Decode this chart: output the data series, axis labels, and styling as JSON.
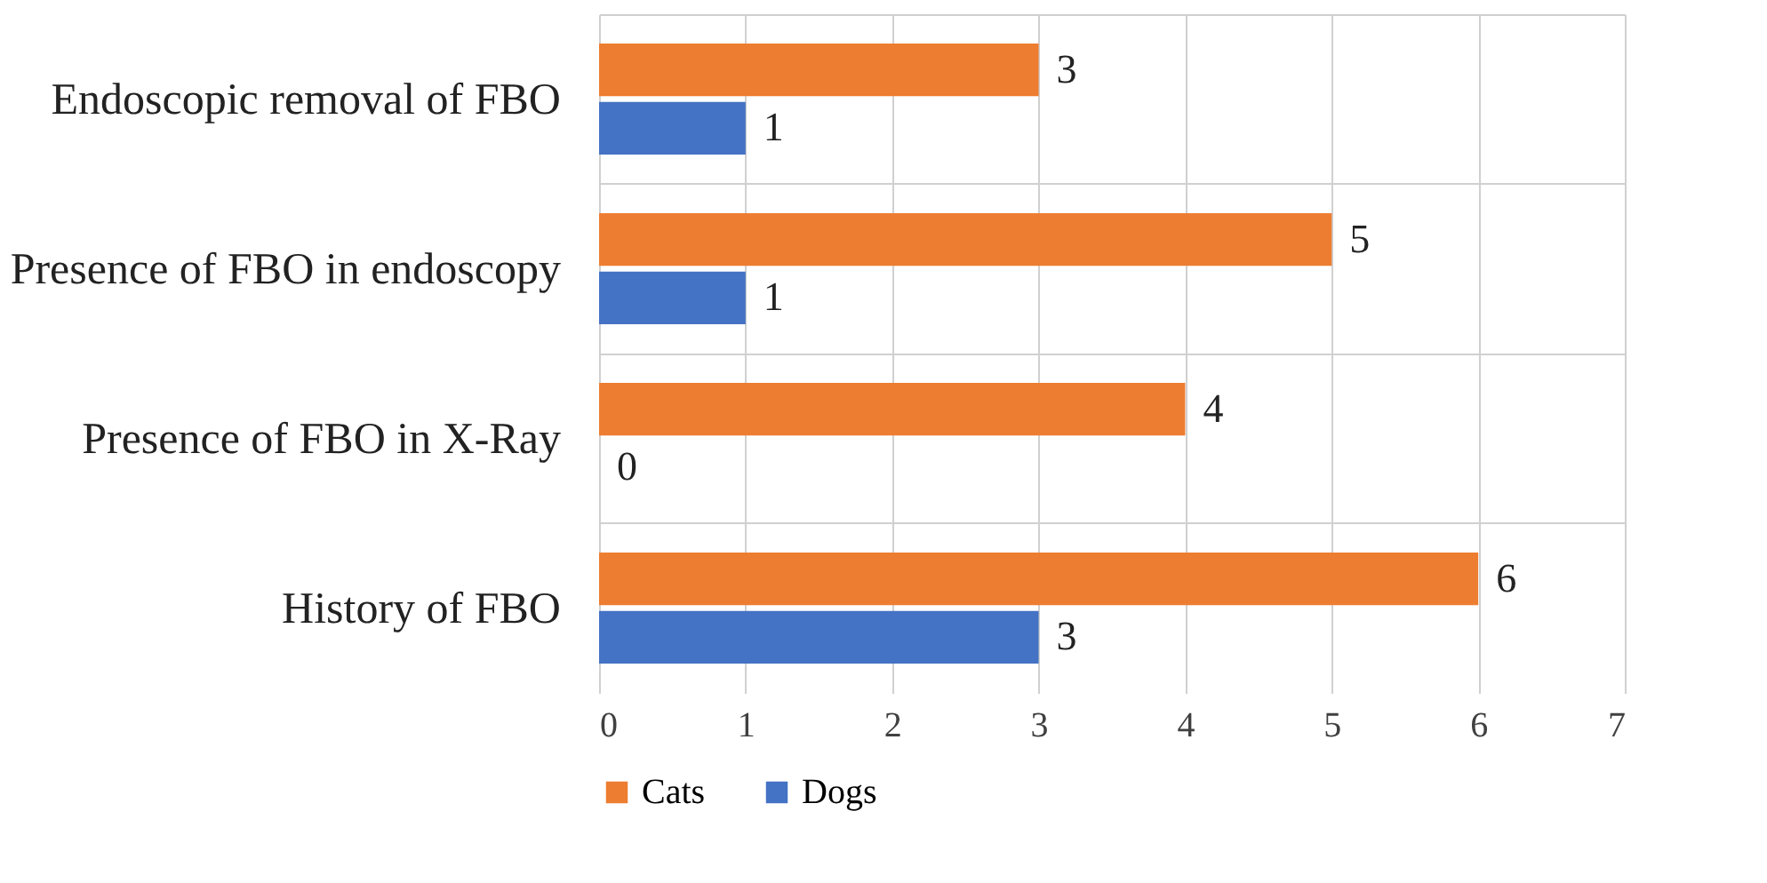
{
  "chart_data": {
    "type": "bar",
    "orientation": "horizontal",
    "categories": [
      "Endoscopic removal of FBO",
      "Presence of FBO in endoscopy",
      "Presence of FBO in X-Ray",
      "History of FBO"
    ],
    "series": [
      {
        "name": "Cats",
        "color": "#ed7d31",
        "values": [
          3,
          5,
          4,
          6
        ]
      },
      {
        "name": "Dogs",
        "color": "#4472c4",
        "values": [
          1,
          1,
          0,
          3
        ]
      }
    ],
    "xlim": [
      0,
      7
    ],
    "xticks": [
      0,
      1,
      2,
      3,
      4,
      5,
      6,
      7
    ],
    "grid": true,
    "legend": "bottom",
    "data_labels": true
  }
}
